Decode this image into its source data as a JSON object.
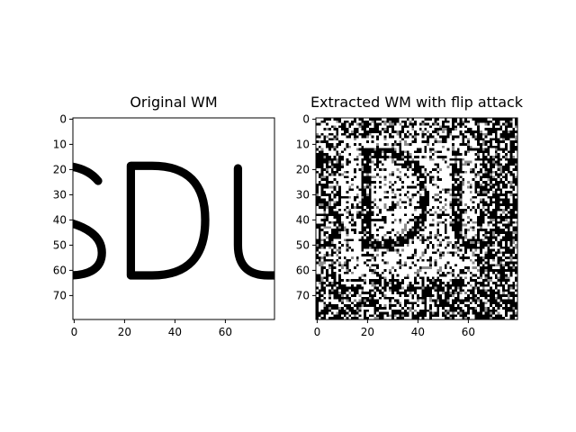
{
  "chart_data": [
    {
      "type": "image",
      "title": "Original WM",
      "text": "SDU",
      "xlim": [
        -0.5,
        79.5
      ],
      "ylim": [
        79.5,
        -0.5
      ],
      "xticks": [
        0,
        20,
        40,
        60
      ],
      "yticks": [
        0,
        10,
        20,
        30,
        40,
        50,
        60,
        70
      ],
      "colormap": "gray",
      "background": "#ffffff",
      "foreground": "#000000"
    },
    {
      "type": "image",
      "title": "Extracted WM with flip attack",
      "text": "SDU",
      "xlim": [
        -0.5,
        79.5
      ],
      "ylim": [
        79.5,
        -0.5
      ],
      "xticks": [
        0,
        20,
        40,
        60
      ],
      "yticks": [
        0,
        10,
        20,
        30,
        40,
        50,
        60,
        70
      ],
      "colormap": "gray",
      "background": "#ffffff",
      "foreground": "#000000"
    }
  ]
}
